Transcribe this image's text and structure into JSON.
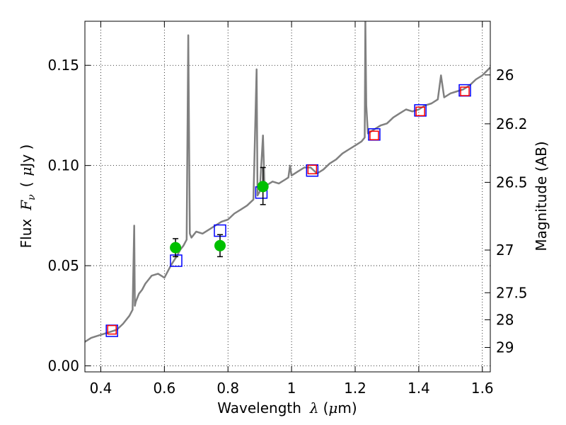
{
  "chart_data": {
    "type": "line",
    "xlabel": {
      "prefix": "Wavelength",
      "symbol": "λ",
      "unit_open": "(",
      "unit": "μ",
      "unit_rest": "m)"
    },
    "ylabel": {
      "prefix": "Flux",
      "symbol": "F",
      "sub": "ν",
      "unit_open": "(",
      "unit": "μ",
      "unit_rest": "Jy )"
    },
    "y2label": "Magnitude (AB)",
    "xlim": [
      0.35,
      1.625
    ],
    "ylim": [
      -0.003,
      0.172
    ],
    "x_ticks": [
      0.4,
      0.6,
      0.8,
      1.0,
      1.2,
      1.4,
      1.6
    ],
    "x_tick_labels": [
      "0.4",
      "0.6",
      "0.8",
      "1",
      "1.2",
      "1.4",
      "1.6"
    ],
    "y_ticks": [
      0.0,
      0.05,
      0.1,
      0.15
    ],
    "y_tick_labels": [
      "0.00",
      "0.05",
      "0.10",
      "0.15"
    ],
    "y2_ticks": [
      {
        "label": "26",
        "flux": 0.1452
      },
      {
        "label": "26.2",
        "flux": 0.1208
      },
      {
        "label": "26.5",
        "flux": 0.0916
      },
      {
        "label": "27",
        "flux": 0.0578
      },
      {
        "label": "27.5",
        "flux": 0.0365
      },
      {
        "label": "28",
        "flux": 0.023
      },
      {
        "label": "29",
        "flux": 0.0092
      }
    ],
    "grid": true,
    "series": [
      {
        "style": "line",
        "color": "#808080",
        "x": [
          0.35,
          0.37,
          0.39,
          0.41,
          0.43,
          0.45,
          0.47,
          0.49,
          0.5,
          0.505,
          0.507,
          0.51,
          0.52,
          0.53,
          0.54,
          0.55,
          0.56,
          0.58,
          0.6,
          0.62,
          0.64,
          0.65,
          0.66,
          0.67,
          0.675,
          0.68,
          0.685,
          0.69,
          0.7,
          0.72,
          0.74,
          0.76,
          0.78,
          0.8,
          0.82,
          0.84,
          0.86,
          0.88,
          0.89,
          0.893,
          0.896,
          0.9,
          0.91,
          0.915,
          0.92,
          0.94,
          0.96,
          0.98,
          0.99,
          0.995,
          1.0,
          1.02,
          1.04,
          1.06,
          1.08,
          1.1,
          1.12,
          1.14,
          1.16,
          1.18,
          1.2,
          1.22,
          1.23,
          1.232,
          1.235,
          1.24,
          1.26,
          1.28,
          1.3,
          1.32,
          1.34,
          1.36,
          1.38,
          1.4,
          1.42,
          1.44,
          1.46,
          1.47,
          1.48,
          1.5,
          1.52,
          1.54,
          1.56,
          1.58,
          1.6,
          1.625
        ],
        "y": [
          0.012,
          0.014,
          0.015,
          0.016,
          0.017,
          0.018,
          0.021,
          0.025,
          0.028,
          0.07,
          0.03,
          0.032,
          0.036,
          0.038,
          0.041,
          0.043,
          0.045,
          0.046,
          0.044,
          0.05,
          0.055,
          0.058,
          0.06,
          0.063,
          0.165,
          0.066,
          0.064,
          0.065,
          0.067,
          0.066,
          0.068,
          0.07,
          0.072,
          0.073,
          0.076,
          0.078,
          0.08,
          0.083,
          0.148,
          0.085,
          0.086,
          0.087,
          0.115,
          0.089,
          0.09,
          0.092,
          0.091,
          0.093,
          0.094,
          0.1,
          0.095,
          0.097,
          0.099,
          0.099,
          0.096,
          0.098,
          0.101,
          0.103,
          0.106,
          0.108,
          0.11,
          0.112,
          0.114,
          0.172,
          0.13,
          0.116,
          0.118,
          0.12,
          0.121,
          0.124,
          0.126,
          0.128,
          0.127,
          0.128,
          0.13,
          0.131,
          0.133,
          0.145,
          0.134,
          0.136,
          0.137,
          0.138,
          0.14,
          0.143,
          0.145,
          0.149
        ]
      },
      {
        "style": "open-square",
        "color": "#0000ff",
        "x": [
          0.435,
          0.637,
          0.775,
          0.905,
          1.065,
          1.26,
          1.405,
          1.545
        ],
        "y": [
          0.0175,
          0.0525,
          0.0675,
          0.0865,
          0.0975,
          0.1155,
          0.1275,
          0.1375
        ]
      },
      {
        "style": "open-square-small",
        "color": "#ff0000",
        "x": [
          0.435,
          1.065,
          1.26,
          1.405,
          1.545
        ],
        "y": [
          0.018,
          0.098,
          0.115,
          0.127,
          0.137
        ]
      },
      {
        "style": "filled-circle-errorbar",
        "color": "#00c000",
        "x": [
          0.635,
          0.775,
          0.91
        ],
        "y": [
          0.059,
          0.06,
          0.0895
        ],
        "err_low": [
          0.0045,
          0.0055,
          0.009
        ],
        "err_high": [
          0.0045,
          0.0055,
          0.0095
        ]
      }
    ]
  }
}
